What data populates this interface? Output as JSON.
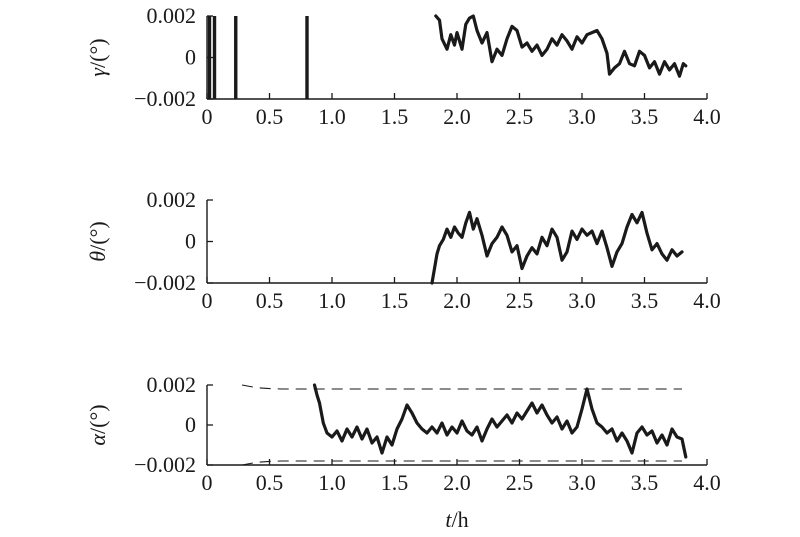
{
  "chart_data": [
    {
      "type": "line",
      "ylabel_symbol": "γ",
      "ylabel_unit": "/(°)",
      "xlim": [
        0,
        4.0
      ],
      "ylim": [
        -0.002,
        0.002
      ],
      "x_ticks": [
        "0",
        "0.5",
        "1.0",
        "1.5",
        "2.0",
        "2.5",
        "3.0",
        "3.5",
        "4.0"
      ],
      "y_ticks": [
        "0.002",
        "0",
        "−0.002"
      ],
      "spikes_x": [
        0.02,
        0.06,
        0.23,
        0.8
      ],
      "series": [
        {
          "x": [
            1.83,
            1.86,
            1.88,
            1.92,
            1.95,
            1.98,
            2.0,
            2.04,
            2.07,
            2.1,
            2.13,
            2.16,
            2.2,
            2.24,
            2.28,
            2.32,
            2.36,
            2.4,
            2.44,
            2.48,
            2.52,
            2.56,
            2.6,
            2.64,
            2.68,
            2.72,
            2.76,
            2.8,
            2.84,
            2.88,
            2.92,
            2.96,
            3.0,
            3.04,
            3.08,
            3.12,
            3.16,
            3.2,
            3.22,
            3.26,
            3.3,
            3.34,
            3.38,
            3.42,
            3.46,
            3.5,
            3.54,
            3.58,
            3.62,
            3.66,
            3.7,
            3.74,
            3.78,
            3.81,
            3.83
          ],
          "values": [
            0.002,
            0.0018,
            0.0009,
            0.0004,
            0.0011,
            0.0006,
            0.0012,
            0.0004,
            0.0016,
            0.0019,
            0.002,
            0.0013,
            0.0007,
            0.0012,
            -0.0002,
            0.0004,
            0.0001,
            0.0009,
            0.0015,
            0.0013,
            0.0005,
            0.0007,
            0.0003,
            0.0006,
            0.0001,
            0.0004,
            0.0009,
            0.0006,
            0.0011,
            0.0008,
            0.0004,
            0.001,
            0.0007,
            0.0011,
            0.0012,
            0.0013,
            0.0009,
            0.0002,
            -0.0008,
            -0.0005,
            -0.0003,
            0.0003,
            -0.0003,
            -0.0004,
            0.0003,
            0.0001,
            -0.0005,
            -0.0002,
            -0.0008,
            -0.0002,
            -0.0006,
            -0.0003,
            -0.0009,
            -0.0003,
            -0.0004
          ]
        }
      ]
    },
    {
      "type": "line",
      "ylabel_symbol": "θ",
      "ylabel_unit": "/(°)",
      "xlim": [
        0,
        4.0
      ],
      "ylim": [
        -0.002,
        0.002
      ],
      "x_ticks": [
        "0",
        "0.5",
        "1.0",
        "1.5",
        "2.0",
        "2.5",
        "3.0",
        "3.5",
        "4.0"
      ],
      "y_ticks": [
        "0.002",
        "0",
        "−0.002"
      ],
      "series": [
        {
          "x": [
            1.8,
            1.82,
            1.84,
            1.86,
            1.89,
            1.92,
            1.95,
            1.98,
            2.01,
            2.04,
            2.07,
            2.1,
            2.13,
            2.16,
            2.2,
            2.24,
            2.28,
            2.32,
            2.36,
            2.4,
            2.44,
            2.48,
            2.52,
            2.56,
            2.6,
            2.64,
            2.68,
            2.72,
            2.76,
            2.8,
            2.84,
            2.88,
            2.92,
            2.96,
            3.0,
            3.04,
            3.08,
            3.12,
            3.16,
            3.2,
            3.24,
            3.28,
            3.32,
            3.36,
            3.4,
            3.44,
            3.48,
            3.52,
            3.56,
            3.6,
            3.64,
            3.68,
            3.72,
            3.76,
            3.8
          ],
          "values": [
            -0.002,
            -0.0013,
            -0.0006,
            -0.0002,
            0.0001,
            0.0006,
            0.0002,
            0.0007,
            0.0004,
            0.0002,
            0.0009,
            0.0014,
            0.0006,
            0.0011,
            0.0003,
            -0.0007,
            -0.0001,
            0.0002,
            0.0007,
            0.0003,
            -0.0005,
            -0.0002,
            -0.0013,
            -0.0007,
            -0.0003,
            -0.0006,
            0.0002,
            -0.0002,
            0.0006,
            0.0002,
            -0.0009,
            -0.0005,
            0.0005,
            0.0001,
            0.0006,
            0.0003,
            0.0005,
            -0.0001,
            0.0005,
            -0.0003,
            -0.0012,
            -0.0005,
            -0.0001,
            0.0007,
            0.0013,
            0.0009,
            0.0014,
            0.0004,
            -0.0004,
            -0.0001,
            -0.0006,
            -0.0009,
            -0.0004,
            -0.0007,
            -0.0005
          ]
        }
      ]
    },
    {
      "type": "line",
      "ylabel_symbol": "α",
      "ylabel_unit": "/(°)",
      "xlim": [
        0,
        4.0
      ],
      "ylim": [
        -0.002,
        0.002
      ],
      "x_ticks": [
        "0",
        "0.5",
        "1.0",
        "1.5",
        "2.0",
        "2.5",
        "3.0",
        "3.5",
        "4.0"
      ],
      "y_ticks": [
        "0.002",
        "0",
        "−0.002"
      ],
      "x_axis_label": "t",
      "x_axis_unit": "/h",
      "bounds": [
        {
          "x": [
            0.28,
            0.4,
            0.5,
            0.6,
            3.8
          ],
          "values": [
            0.002,
            0.00186,
            0.00182,
            0.0018,
            0.0018
          ]
        },
        {
          "x": [
            0.28,
            0.4,
            0.5,
            0.6,
            3.8
          ],
          "values": [
            -0.002,
            -0.00186,
            -0.00182,
            -0.0018,
            -0.0018
          ]
        }
      ],
      "series": [
        {
          "x": [
            0.86,
            0.88,
            0.9,
            0.93,
            0.96,
            1.0,
            1.04,
            1.08,
            1.12,
            1.16,
            1.2,
            1.24,
            1.28,
            1.32,
            1.36,
            1.4,
            1.44,
            1.48,
            1.52,
            1.56,
            1.6,
            1.64,
            1.68,
            1.72,
            1.76,
            1.8,
            1.84,
            1.88,
            1.92,
            1.96,
            2.0,
            2.04,
            2.08,
            2.12,
            2.16,
            2.2,
            2.24,
            2.28,
            2.32,
            2.36,
            2.4,
            2.44,
            2.48,
            2.52,
            2.56,
            2.6,
            2.64,
            2.68,
            2.72,
            2.76,
            2.8,
            2.84,
            2.88,
            2.92,
            2.96,
            3.0,
            3.04,
            3.08,
            3.12,
            3.16,
            3.2,
            3.24,
            3.28,
            3.32,
            3.36,
            3.4,
            3.44,
            3.48,
            3.52,
            3.56,
            3.6,
            3.64,
            3.68,
            3.72,
            3.76,
            3.8,
            3.83
          ],
          "values": [
            0.002,
            0.0015,
            0.0011,
            0.0001,
            -0.0004,
            -0.0006,
            -0.0003,
            -0.0008,
            -0.0002,
            -0.0006,
            -0.0001,
            -0.0007,
            -0.0002,
            -0.0009,
            -0.0006,
            -0.0014,
            -0.0006,
            -0.001,
            -0.0002,
            0.0003,
            0.001,
            0.0006,
            0.0001,
            -0.0002,
            -0.0004,
            -0.0001,
            -0.0004,
            0.0001,
            -0.0005,
            -0.0001,
            -0.0004,
            0.0002,
            -0.0003,
            -0.0005,
            -0.0001,
            -0.0008,
            -0.0002,
            0.0003,
            -0.0001,
            0.0002,
            0.0005,
            0.0001,
            0.0006,
            0.0003,
            0.0007,
            0.0011,
            0.0006,
            0.001,
            0.0005,
            0.0001,
            0.0004,
            -0.0002,
            0.0002,
            -0.0004,
            -0.0001,
            0.0008,
            0.0018,
            0.0008,
            0.0001,
            -0.0001,
            -0.0004,
            -0.0002,
            -0.0008,
            -0.0004,
            -0.0008,
            -0.0014,
            -0.0004,
            -0.0001,
            -0.0005,
            -0.0003,
            -0.0009,
            -0.0005,
            -0.001,
            -0.0002,
            -0.0006,
            -0.0007,
            -0.0016
          ]
        }
      ]
    }
  ]
}
